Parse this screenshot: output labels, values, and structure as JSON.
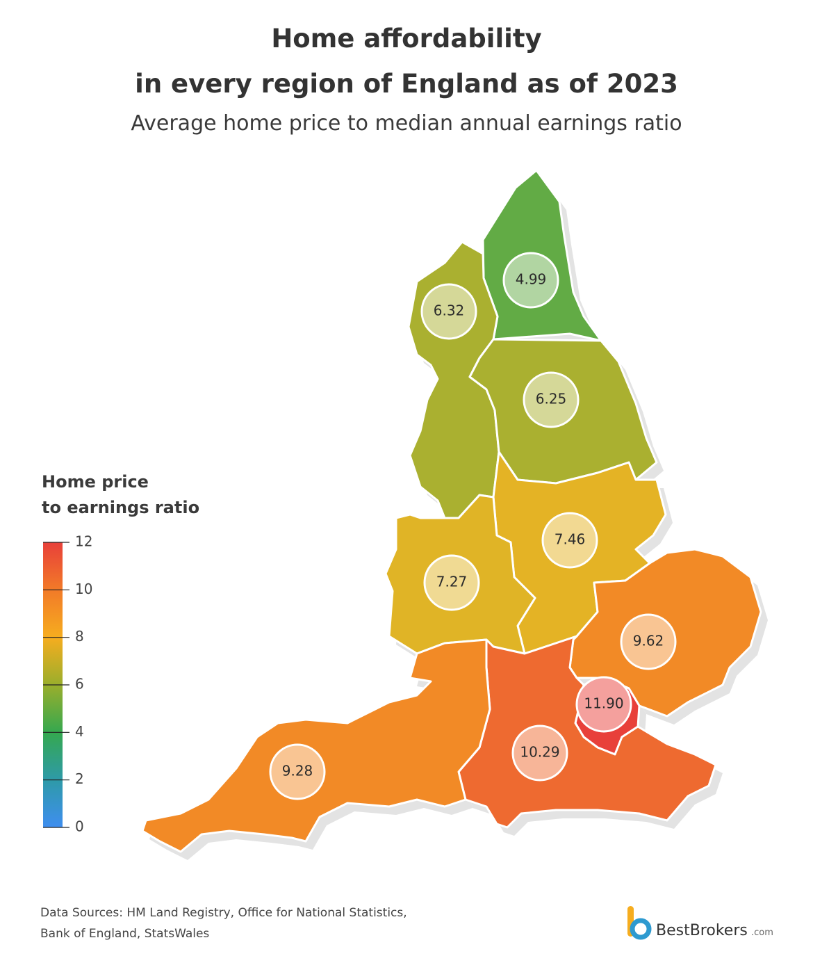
{
  "chart_data": {
    "type": "choropleth",
    "title": [
      "Home affordability",
      "in every region of England as of 2023"
    ],
    "subtitle": "Average home price to median annual earnings ratio",
    "legend_title": [
      "Home price",
      "to earnings ratio"
    ],
    "ylim": [
      0,
      12
    ],
    "yticks": [
      0,
      2,
      4,
      6,
      8,
      10,
      12
    ],
    "scale_colors": [
      "#3f8ef0",
      "#2e9aa8",
      "#35a84f",
      "#9aae2c",
      "#f6ad1f",
      "#f27a28",
      "#e8403a"
    ],
    "values": [
      4.99,
      6.32,
      6.25,
      7.46,
      7.27,
      9.62,
      11.9,
      10.29,
      9.28
    ],
    "value_labels": [
      "4.99",
      "6.32",
      "6.25",
      "7.46",
      "7.27",
      "9.62",
      "11.90",
      "10.29",
      "9.28"
    ],
    "colors": [
      "#62ab45",
      "#aab030",
      "#aab030",
      "#e4b325",
      "#e0b426",
      "#f28a26",
      "#e8403a",
      "#ee6a30",
      "#f28a26"
    ],
    "sources": [
      "Data Sources: HM Land Registry, Office for National Statistics,",
      "Bank of England, StatsWales"
    ],
    "brand": "BestBrokers",
    "brand_suffix": ".com"
  }
}
